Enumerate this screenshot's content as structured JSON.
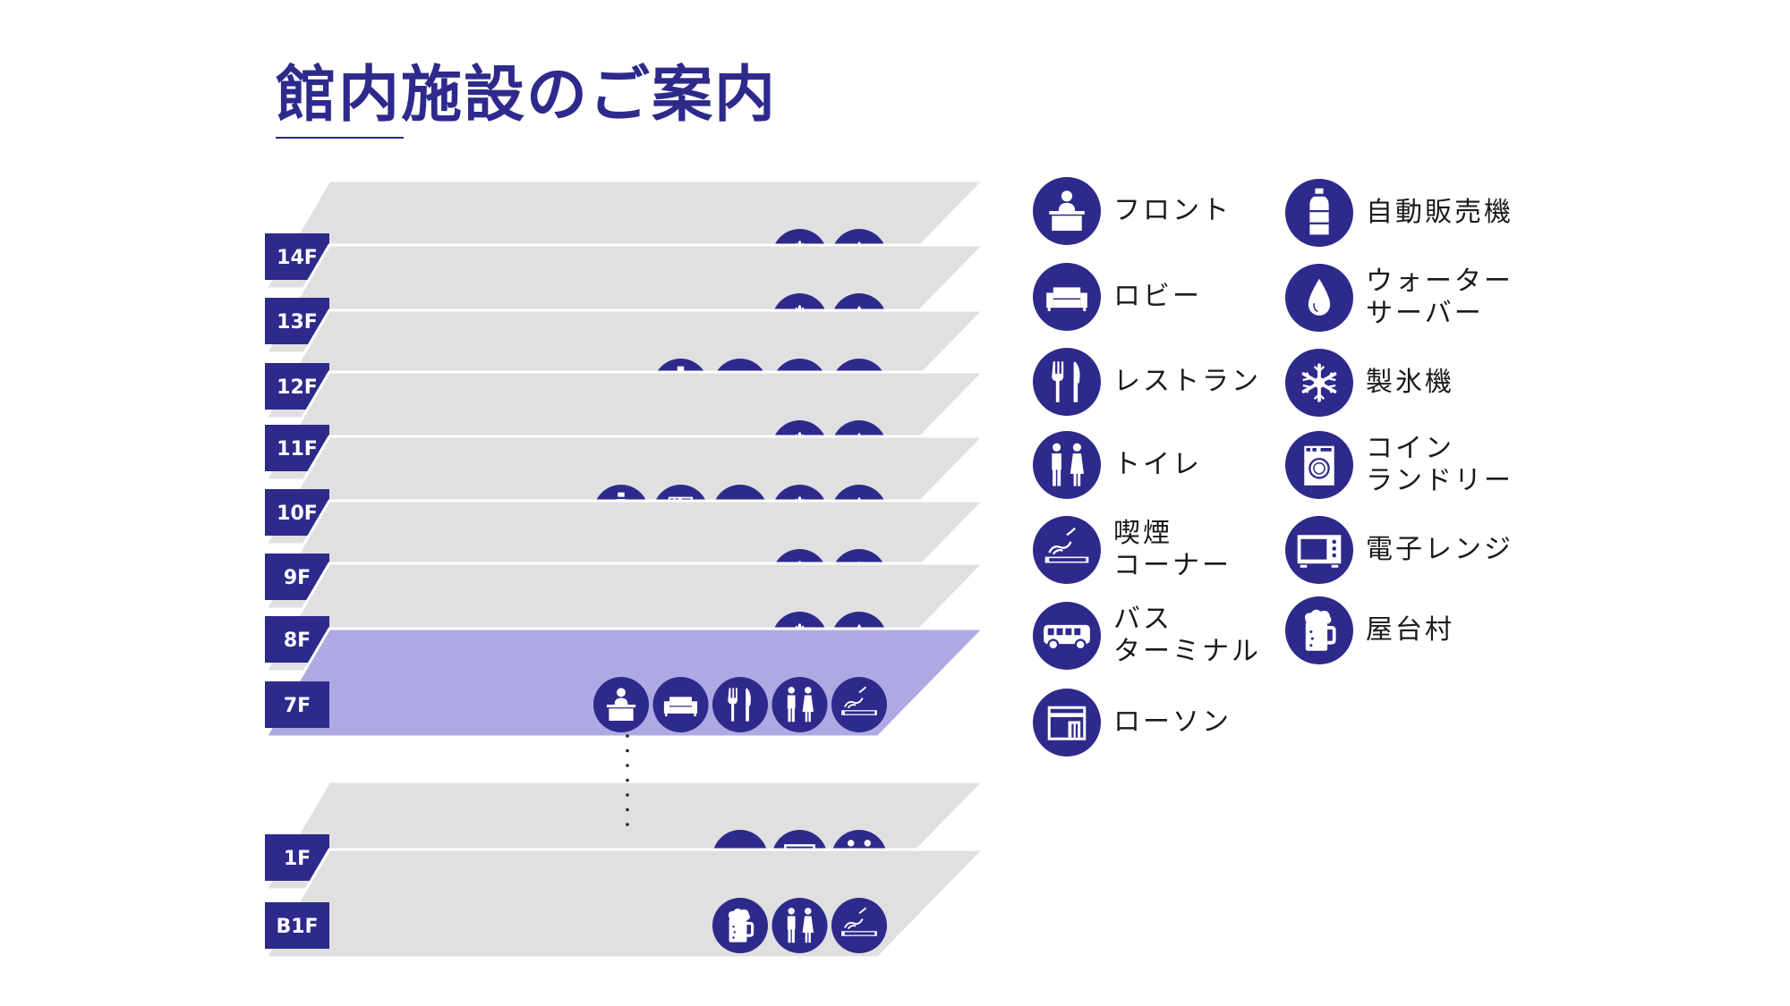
{
  "title": "館内施設のご案内",
  "colors": {
    "accent": "#2e2a8c",
    "plate": "#e0e0e0",
    "highlight_plate": "#adaae3",
    "label_bg": "#2e2a8c"
  },
  "highlighted_floor": "7F",
  "floors": [
    {
      "label": "14F",
      "icons": [
        "ice-machine",
        "water-server"
      ]
    },
    {
      "label": "13F",
      "icons": [
        "ice-machine",
        "water-server"
      ]
    },
    {
      "label": "12F",
      "icons": [
        "vending-machine",
        "coin-laundry",
        "ice-machine",
        "water-server"
      ]
    },
    {
      "label": "11F",
      "icons": [
        "ice-machine",
        "water-server"
      ]
    },
    {
      "label": "10F",
      "icons": [
        "vending-machine",
        "coin-laundry",
        "microwave",
        "ice-machine",
        "water-server"
      ]
    },
    {
      "label": "9F",
      "icons": [
        "ice-machine",
        "water-server"
      ]
    },
    {
      "label": "8F",
      "icons": [
        "ice-machine",
        "water-server"
      ]
    },
    {
      "label": "7F",
      "icons": [
        "front-desk",
        "lobby",
        "restaurant",
        "toilet",
        "smoking"
      ]
    },
    {
      "label": "1F",
      "icons": [
        "bus-terminal",
        "lawson",
        "toilet"
      ]
    },
    {
      "label": "B1F",
      "icons": [
        "yatai-beer",
        "toilet",
        "smoking"
      ]
    }
  ],
  "legend": {
    "left": [
      {
        "icon": "front-desk",
        "label": "フロント"
      },
      {
        "icon": "lobby",
        "label": "ロビー"
      },
      {
        "icon": "restaurant",
        "label": "レストラン"
      },
      {
        "icon": "toilet",
        "label": "トイレ"
      },
      {
        "icon": "smoking",
        "label": "喫煙\nコーナー"
      },
      {
        "icon": "bus-terminal",
        "label": "バス\nターミナル"
      },
      {
        "icon": "lawson",
        "label": "ローソン"
      }
    ],
    "right": [
      {
        "icon": "vending-machine",
        "label": "自動販売機"
      },
      {
        "icon": "water-server",
        "label": "ウォーター\nサーバー"
      },
      {
        "icon": "ice-machine",
        "label": "製氷機"
      },
      {
        "icon": "coin-laundry",
        "label": "コイン\nランドリー"
      },
      {
        "icon": "microwave",
        "label": "電子レンジ"
      },
      {
        "icon": "yatai-beer",
        "label": "屋台村"
      }
    ]
  }
}
